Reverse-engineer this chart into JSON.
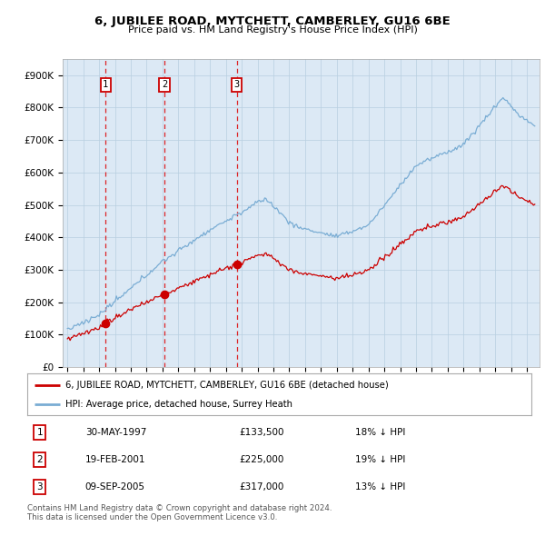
{
  "title": "6, JUBILEE ROAD, MYTCHETT, CAMBERLEY, GU16 6BE",
  "subtitle": "Price paid vs. HM Land Registry's House Price Index (HPI)",
  "plot_bg_color": "#dce9f5",
  "grid_color": "#b8cfe0",
  "red_line_color": "#cc0000",
  "blue_line_color": "#7aadd4",
  "sale_points": [
    {
      "date_num": 1997.41,
      "price": 133500,
      "label": "1",
      "date_str": "30-MAY-1997",
      "pct": "18% ↓ HPI"
    },
    {
      "date_num": 2001.12,
      "price": 225000,
      "label": "2",
      "date_str": "19-FEB-2001",
      "pct": "19% ↓ HPI"
    },
    {
      "date_num": 2005.69,
      "price": 317000,
      "label": "3",
      "date_str": "09-SEP-2005",
      "pct": "13% ↓ HPI"
    }
  ],
  "legend_entry1": "6, JUBILEE ROAD, MYTCHETT, CAMBERLEY, GU16 6BE (detached house)",
  "legend_entry2": "HPI: Average price, detached house, Surrey Heath",
  "footnote": "Contains HM Land Registry data © Crown copyright and database right 2024.\nThis data is licensed under the Open Government Licence v3.0.",
  "ytick_labels": [
    "£0",
    "£100K",
    "£200K",
    "£300K",
    "£400K",
    "£500K",
    "£600K",
    "£700K",
    "£800K",
    "£900K"
  ],
  "ytick_values": [
    0,
    100000,
    200000,
    300000,
    400000,
    500000,
    600000,
    700000,
    800000,
    900000
  ],
  "ylim_max": 950000,
  "xlim_start": 1994.7,
  "xlim_end": 2024.8,
  "xtick_start": 1995,
  "xtick_end": 2025
}
